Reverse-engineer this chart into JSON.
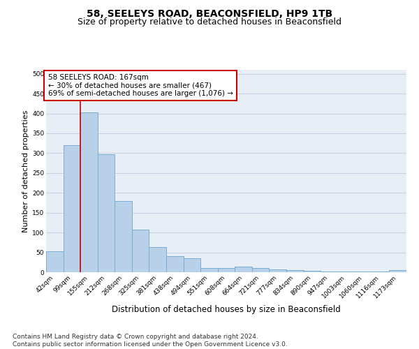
{
  "title": "58, SEELEYS ROAD, BEACONSFIELD, HP9 1TB",
  "subtitle": "Size of property relative to detached houses in Beaconsfield",
  "xlabel": "Distribution of detached houses by size in Beaconsfield",
  "ylabel": "Number of detached properties",
  "categories": [
    "42sqm",
    "99sqm",
    "155sqm",
    "212sqm",
    "268sqm",
    "325sqm",
    "381sqm",
    "438sqm",
    "494sqm",
    "551sqm",
    "608sqm",
    "664sqm",
    "721sqm",
    "777sqm",
    "834sqm",
    "890sqm",
    "947sqm",
    "1003sqm",
    "1060sqm",
    "1116sqm",
    "1173sqm"
  ],
  "values": [
    53,
    320,
    403,
    297,
    179,
    107,
    64,
    41,
    36,
    11,
    11,
    14,
    10,
    7,
    5,
    3,
    2,
    1,
    1,
    1,
    5
  ],
  "bar_color": "#b8d0e8",
  "bar_edge_color": "#7aadd4",
  "grid_color": "#c8d4e4",
  "background_color": "#e8eef6",
  "annotation_text": "58 SEELEYS ROAD: 167sqm\n← 30% of detached houses are smaller (467)\n69% of semi-detached houses are larger (1,076) →",
  "annotation_box_color": "#ffffff",
  "annotation_box_edge_color": "#cc0000",
  "vline_x": 1.5,
  "vline_color": "#cc0000",
  "ylim": [
    0,
    510
  ],
  "yticks": [
    0,
    50,
    100,
    150,
    200,
    250,
    300,
    350,
    400,
    450,
    500
  ],
  "footer": "Contains HM Land Registry data © Crown copyright and database right 2024.\nContains public sector information licensed under the Open Government Licence v3.0.",
  "title_fontsize": 10,
  "subtitle_fontsize": 9,
  "xlabel_fontsize": 8.5,
  "ylabel_fontsize": 8,
  "tick_fontsize": 6.5,
  "annotation_fontsize": 7.5,
  "footer_fontsize": 6.5
}
